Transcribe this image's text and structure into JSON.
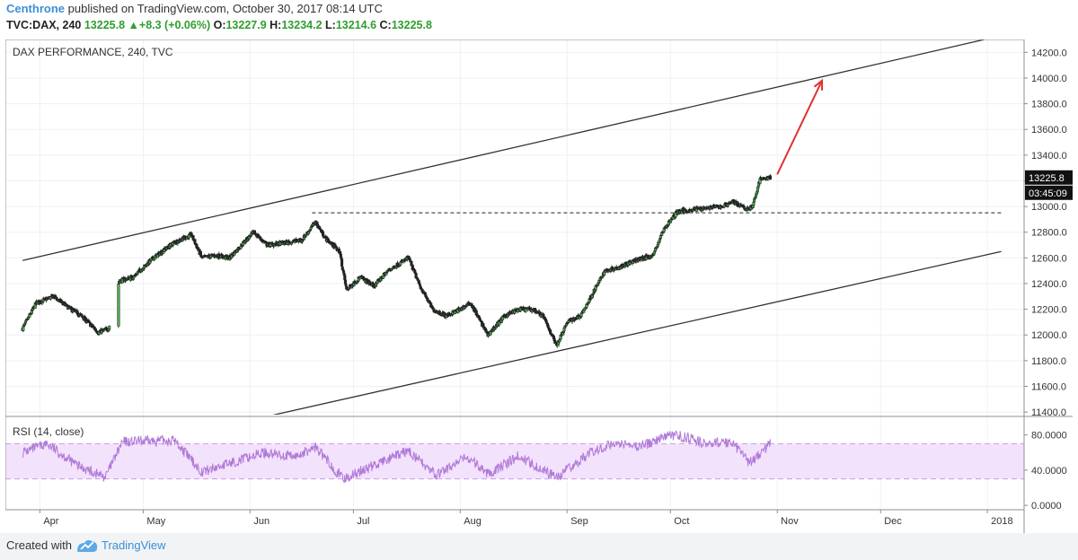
{
  "header": {
    "author": "Centhrone",
    "published_text": "published on TradingView.com, October 30, 2017 08:14 UTC",
    "symbol": "TVC:DAX, 240",
    "last": "13225.8",
    "change": "+8.3 (+0.06%)",
    "open_label": "O:",
    "open": "13227.9",
    "high_label": "H:",
    "high": "13234.2",
    "low_label": "L:",
    "low": "13214.6",
    "close_label": "C:",
    "close": "13225.8"
  },
  "footer": {
    "created_with": "Created with",
    "brand": "TradingView"
  },
  "colors": {
    "up": "#2e9e2e",
    "down": "#222222",
    "rsi": "#b07ad8",
    "rsi_band": "#f3e2fb",
    "accent": "#3b8fd6",
    "arrow": "#e03131"
  },
  "chart_data": [
    {
      "type": "candlestick",
      "title": "DAX PERFORMANCE, 240, TVC",
      "x_labels": [
        "Apr",
        "May",
        "Jun",
        "Jul",
        "Aug",
        "Sep",
        "Oct",
        "Nov",
        "Dec",
        "2018"
      ],
      "y_ticks": [
        "14200.0",
        "14000.0",
        "13800.0",
        "13600.0",
        "13400.0",
        "13200.0",
        "13000.0",
        "12800.0",
        "12600.0",
        "12400.0",
        "12200.0",
        "12000.0",
        "11800.0",
        "11600.0",
        "11400.0"
      ],
      "ylim": [
        11380,
        14300
      ],
      "last_price_label": "13225.8",
      "countdown_label": "03:45:09",
      "anchors": [
        [
          "2017-03-27",
          12050
        ],
        [
          "2017-03-31",
          12250
        ],
        [
          "2017-04-05",
          12300
        ],
        [
          "2017-04-10",
          12200
        ],
        [
          "2017-04-13",
          12150
        ],
        [
          "2017-04-18",
          12020
        ],
        [
          "2017-04-21",
          12050
        ],
        [
          "2017-04-24",
          12420
        ],
        [
          "2017-04-28",
          12450
        ],
        [
          "2017-05-04",
          12600
        ],
        [
          "2017-05-10",
          12720
        ],
        [
          "2017-05-15",
          12780
        ],
        [
          "2017-05-18",
          12600
        ],
        [
          "2017-05-22",
          12620
        ],
        [
          "2017-05-26",
          12600
        ],
        [
          "2017-06-02",
          12800
        ],
        [
          "2017-06-06",
          12700
        ],
        [
          "2017-06-12",
          12720
        ],
        [
          "2017-06-16",
          12740
        ],
        [
          "2017-06-20",
          12880
        ],
        [
          "2017-06-23",
          12750
        ],
        [
          "2017-06-27",
          12650
        ],
        [
          "2017-06-29",
          12350
        ],
        [
          "2017-07-03",
          12450
        ],
        [
          "2017-07-07",
          12380
        ],
        [
          "2017-07-11",
          12500
        ],
        [
          "2017-07-17",
          12600
        ],
        [
          "2017-07-20",
          12400
        ],
        [
          "2017-07-24",
          12200
        ],
        [
          "2017-07-28",
          12150
        ],
        [
          "2017-08-01",
          12200
        ],
        [
          "2017-08-04",
          12250
        ],
        [
          "2017-08-09",
          12000
        ],
        [
          "2017-08-14",
          12150
        ],
        [
          "2017-08-18",
          12200
        ],
        [
          "2017-08-22",
          12200
        ],
        [
          "2017-08-25",
          12150
        ],
        [
          "2017-08-29",
          11920
        ],
        [
          "2017-09-01",
          12100
        ],
        [
          "2017-09-05",
          12150
        ],
        [
          "2017-09-08",
          12300
        ],
        [
          "2017-09-12",
          12500
        ],
        [
          "2017-09-15",
          12520
        ],
        [
          "2017-09-19",
          12560
        ],
        [
          "2017-09-22",
          12590
        ],
        [
          "2017-09-26",
          12620
        ],
        [
          "2017-09-29",
          12820
        ],
        [
          "2017-10-03",
          12960
        ],
        [
          "2017-10-06",
          12970
        ],
        [
          "2017-10-11",
          12990
        ],
        [
          "2017-10-16",
          13000
        ],
        [
          "2017-10-19",
          13040
        ],
        [
          "2017-10-23",
          12980
        ],
        [
          "2017-10-25",
          13000
        ],
        [
          "2017-10-26",
          13120
        ],
        [
          "2017-10-27",
          13210
        ],
        [
          "2017-10-30",
          13225.8
        ]
      ],
      "channel": {
        "upper": [
          [
            "2017-03-27",
            12580
          ],
          [
            "2018-01-05",
            14330
          ]
        ],
        "lower": [
          [
            "2017-05-31",
            11330
          ],
          [
            "2018-01-05",
            12650
          ]
        ]
      },
      "resistance": {
        "value": 12951,
        "from": "2017-06-19",
        "to": "2018-01-05"
      },
      "projection_arrow": [
        [
          "2017-11-01",
          13250
        ],
        [
          "2017-11-14",
          13980
        ]
      ]
    },
    {
      "type": "line",
      "title": "RSI (14, close)",
      "y_ticks": [
        "80.0000",
        "40.0000",
        "0.0000"
      ],
      "ylim": [
        -5,
        100
      ],
      "bands": [
        30,
        70
      ],
      "anchors": [
        [
          "2017-03-27",
          60
        ],
        [
          "2017-04-03",
          70
        ],
        [
          "2017-04-12",
          45
        ],
        [
          "2017-04-20",
          32
        ],
        [
          "2017-04-25",
          72
        ],
        [
          "2017-05-10",
          74
        ],
        [
          "2017-05-18",
          38
        ],
        [
          "2017-06-05",
          60
        ],
        [
          "2017-06-14",
          55
        ],
        [
          "2017-06-20",
          66
        ],
        [
          "2017-06-28",
          30
        ],
        [
          "2017-07-05",
          42
        ],
        [
          "2017-07-17",
          62
        ],
        [
          "2017-07-25",
          34
        ],
        [
          "2017-08-03",
          55
        ],
        [
          "2017-08-09",
          36
        ],
        [
          "2017-08-18",
          56
        ],
        [
          "2017-08-29",
          32
        ],
        [
          "2017-09-08",
          60
        ],
        [
          "2017-09-15",
          72
        ],
        [
          "2017-09-22",
          66
        ],
        [
          "2017-09-29",
          78
        ],
        [
          "2017-10-03",
          80
        ],
        [
          "2017-10-11",
          70
        ],
        [
          "2017-10-19",
          72
        ],
        [
          "2017-10-24",
          48
        ],
        [
          "2017-10-30",
          70
        ]
      ]
    }
  ]
}
